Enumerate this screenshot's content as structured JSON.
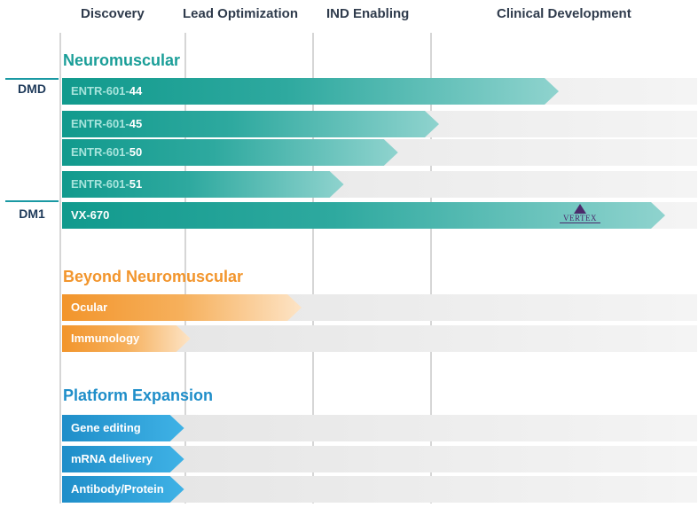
{
  "chart_data": {
    "type": "bar",
    "title": "",
    "xlabel": "",
    "ylabel": "",
    "phases": [
      "Discovery",
      "Lead Optimization",
      "IND Enabling",
      "Clinical Development"
    ],
    "sections": [
      {
        "name": "Neuromuscular",
        "color": "#1a9e98",
        "programs": [
          {
            "indication": "DMD",
            "label_prefix": "ENTR-601-",
            "label_suffix": "44",
            "progress": 3.48
          },
          {
            "indication": "",
            "label_prefix": "ENTR-601-",
            "label_suffix": "45",
            "progress": 3.03
          },
          {
            "indication": "",
            "label_prefix": "ENTR-601-",
            "label_suffix": "50",
            "progress": 2.72
          },
          {
            "indication": "",
            "label_prefix": "ENTR-601-",
            "label_suffix": "51",
            "progress": 2.26
          },
          {
            "indication": "DM1",
            "label_prefix": "VX-670",
            "label_suffix": "",
            "progress": 3.88,
            "partner": "VERTEX"
          }
        ]
      },
      {
        "name": "Beyond Neuromuscular",
        "color": "#f2952c",
        "programs": [
          {
            "indication": "",
            "label_prefix": "Ocular",
            "label_suffix": "",
            "progress": 1.91
          },
          {
            "indication": "",
            "label_prefix": "Immunology",
            "label_suffix": "",
            "progress": 1.04
          }
        ]
      },
      {
        "name": "Platform Expansion",
        "color": "#1f8ec9",
        "programs": [
          {
            "indication": "",
            "label_prefix": "Gene editing",
            "label_suffix": "",
            "progress": 0.99
          },
          {
            "indication": "",
            "label_prefix": "mRNA delivery",
            "label_suffix": "",
            "progress": 0.99
          },
          {
            "indication": "",
            "label_prefix": "Antibody/Protein",
            "label_suffix": "",
            "progress": 0.99
          }
        ]
      }
    ]
  }
}
